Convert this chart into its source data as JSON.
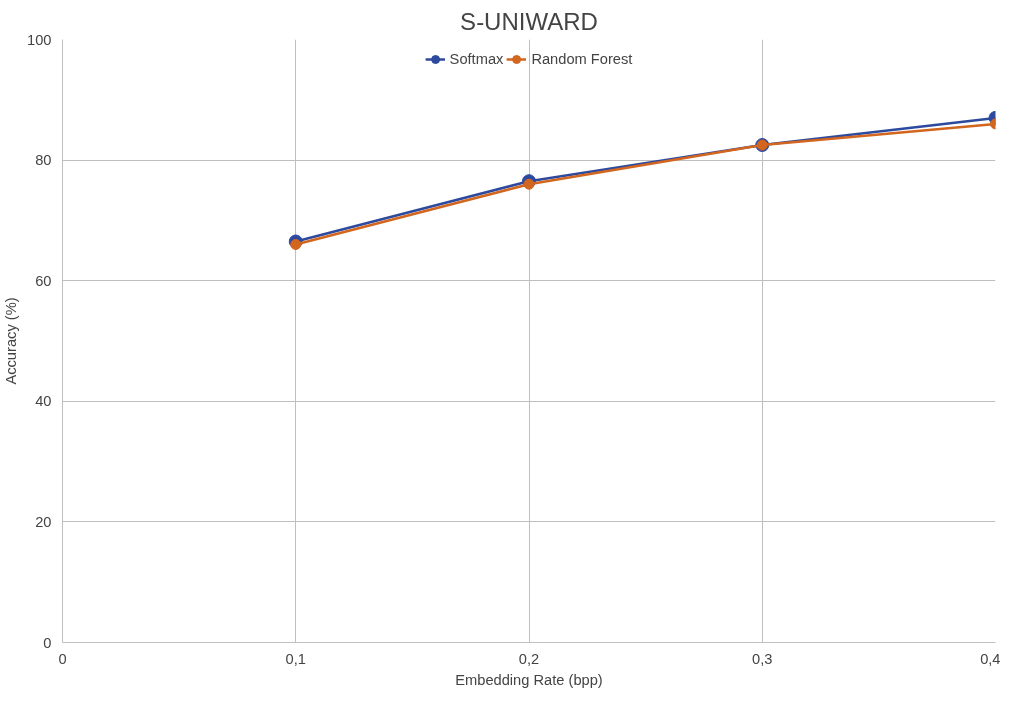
{
  "chart_data": {
    "type": "line",
    "title": "S-UNIWARD",
    "xlabel": "Embedding Rate (bpp)",
    "ylabel": "Accuracy (%)",
    "x": [
      0.1,
      0.2,
      0.3,
      0.4
    ],
    "series": [
      {
        "name": "Softmax",
        "color": "#2e4a9e",
        "values": [
          66.5,
          76.5,
          82.5,
          87
        ]
      },
      {
        "name": "Random Forest",
        "color": "#d2661e",
        "values": [
          66,
          76,
          82.5,
          86
        ]
      }
    ],
    "xlim": [
      0,
      0.4
    ],
    "xticks": [
      0,
      {
        "value": 0.1,
        "label": "0,1"
      },
      {
        "value": 0.2,
        "label": "0,2"
      },
      {
        "value": 0.3,
        "label": "0,3"
      },
      {
        "value": 0.4,
        "label": "0,4"
      }
    ],
    "ylim": [
      0,
      100
    ],
    "yticks": [
      0,
      20,
      40,
      60,
      80,
      100
    ],
    "grid": true,
    "legend": "top",
    "marker": "circle",
    "line_style": "solid"
  }
}
